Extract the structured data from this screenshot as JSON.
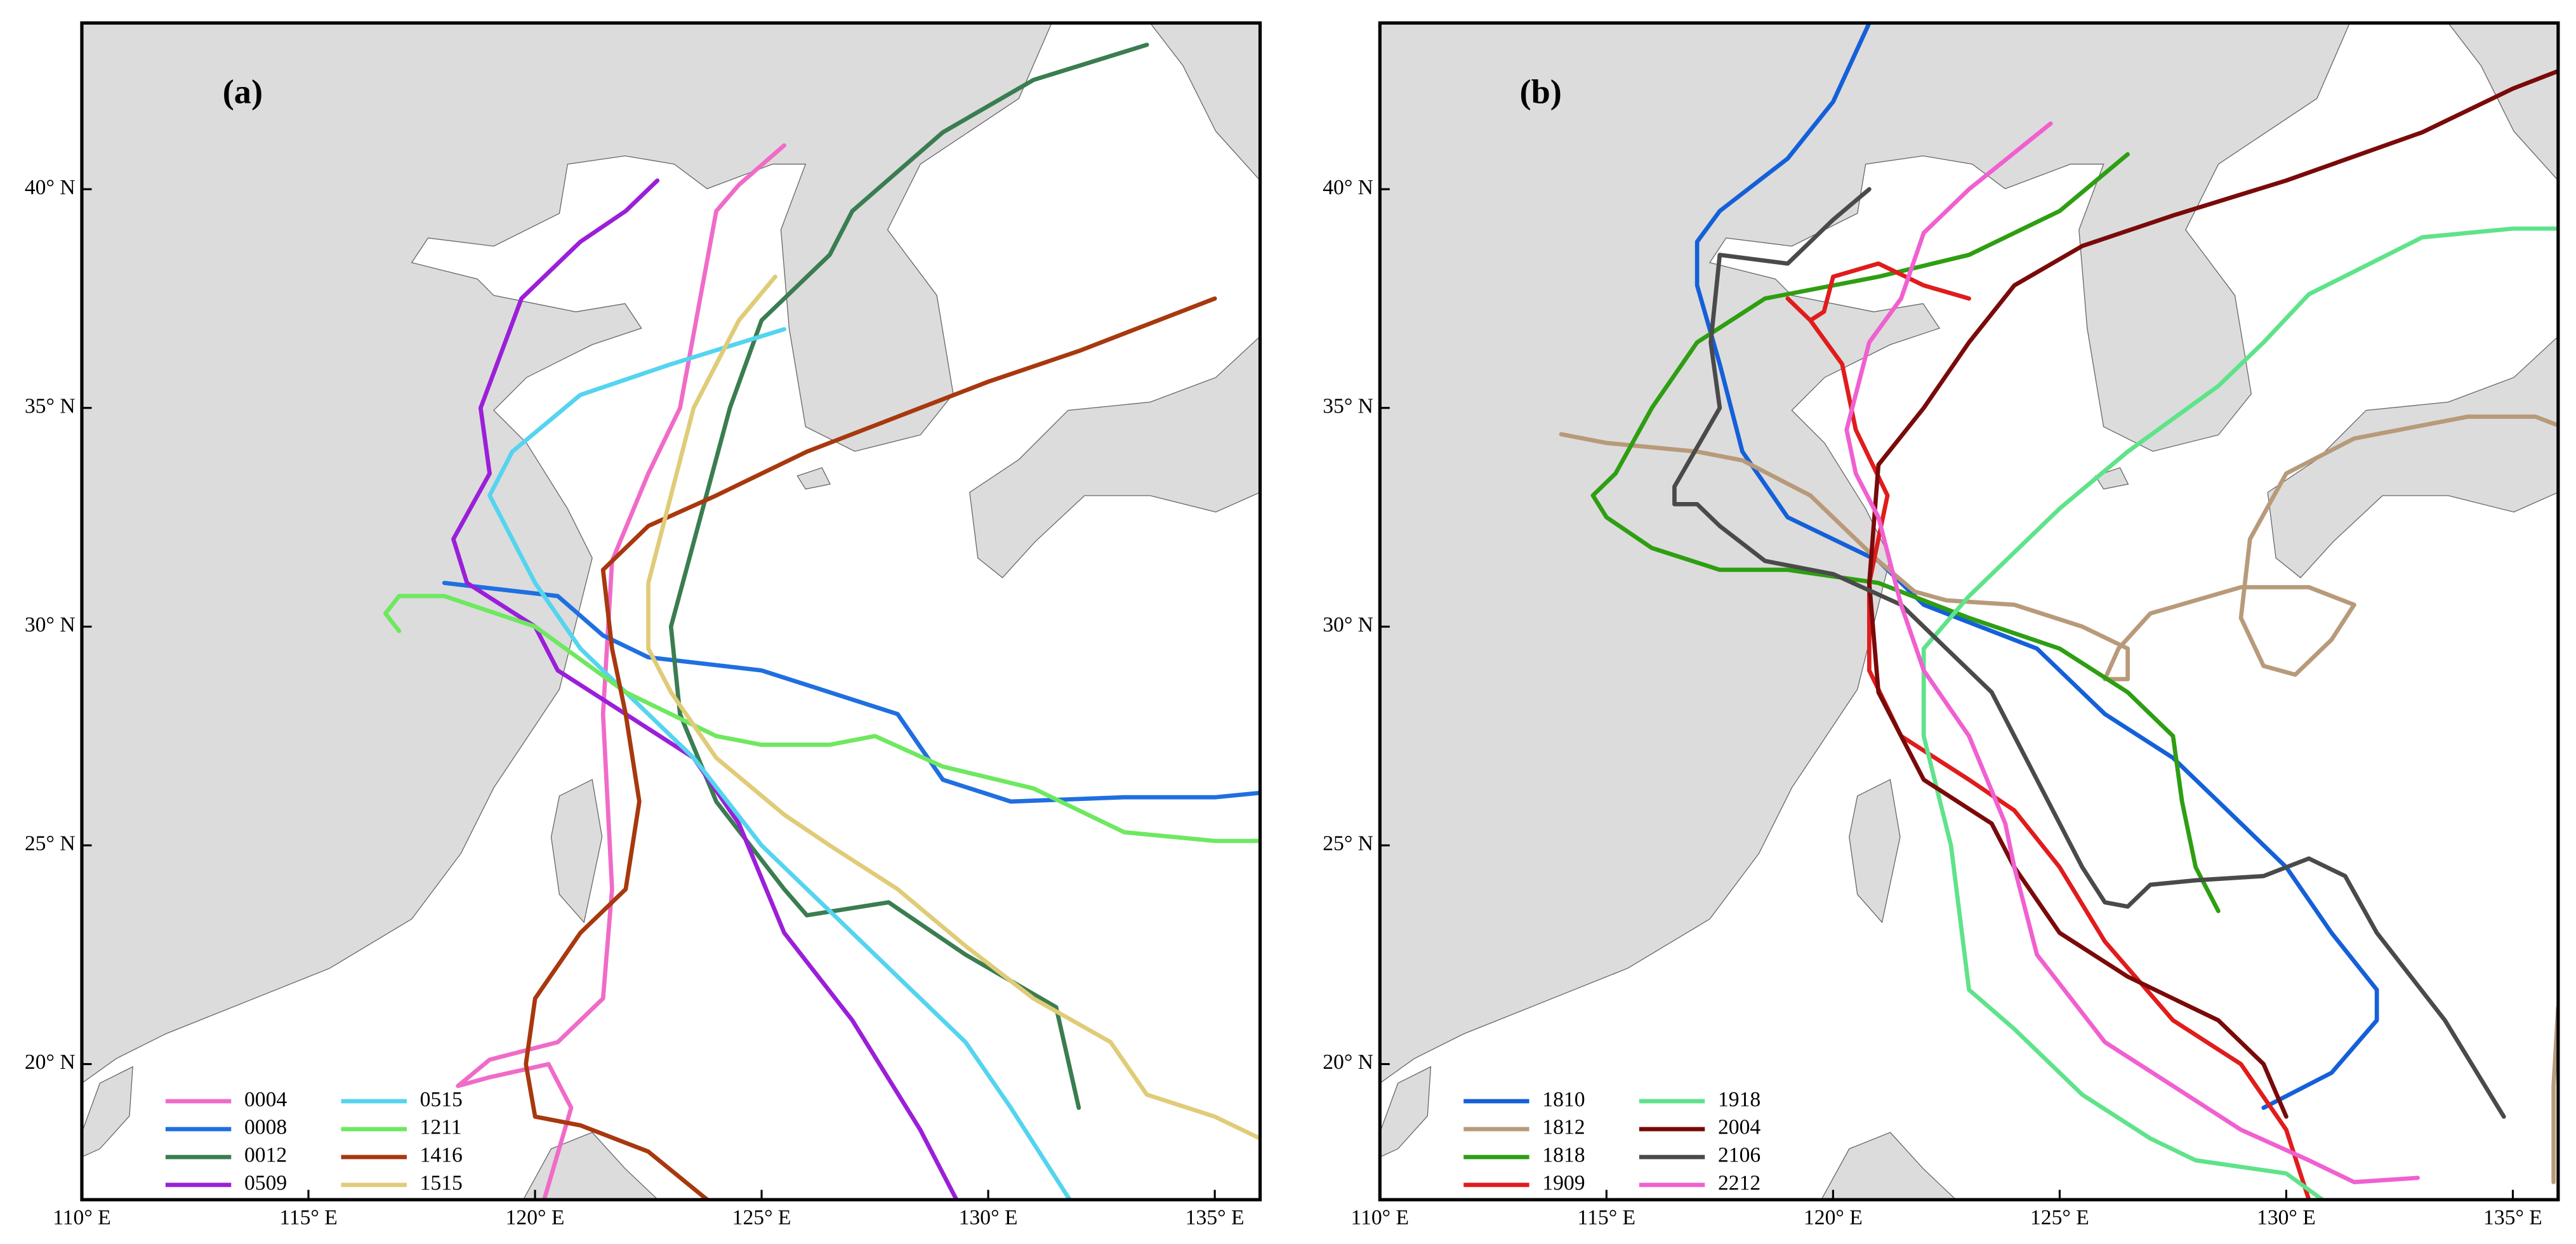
{
  "chart_data": [
    {
      "type": "map",
      "title": "(a)",
      "xlim": [
        110,
        136
      ],
      "ylim": [
        16.9,
        43.8
      ],
      "xticks": [
        {
          "value": 110,
          "label": "110° E"
        },
        {
          "value": 115,
          "label": "115° E"
        },
        {
          "value": 120,
          "label": "120° E"
        },
        {
          "value": 125,
          "label": "125° E"
        },
        {
          "value": 130,
          "label": "130° E"
        },
        {
          "value": 135,
          "label": "135° E"
        }
      ],
      "yticks": [
        {
          "value": 20,
          "label": "20° N"
        },
        {
          "value": 25,
          "label": "25° N"
        },
        {
          "value": 30,
          "label": "30° N"
        },
        {
          "value": 35,
          "label": "35° N"
        },
        {
          "value": 40,
          "label": "40° N"
        }
      ],
      "series": [
        {
          "name": "0004",
          "color": "#f06bc8",
          "x": [
            120.2,
            120.8,
            120.3,
            119.0,
            118.3,
            119.0,
            120.5,
            121.5,
            121.7,
            121.5,
            121.7,
            122.5,
            123.2,
            124.0,
            124.5,
            125.5
          ],
          "values": [
            16.9,
            19.0,
            20.0,
            19.7,
            19.5,
            20.1,
            20.5,
            21.5,
            24.0,
            28.0,
            31.5,
            33.5,
            35.0,
            39.5,
            40.1,
            41.0
          ]
        },
        {
          "name": "0008",
          "color": "#1f6fe0",
          "x": [
            118,
            120.5,
            121.5,
            122.5,
            125,
            126.5,
            128,
            129,
            130.5,
            133,
            135,
            136
          ],
          "values": [
            31,
            30.7,
            29.8,
            29.3,
            29,
            28.5,
            28,
            26.5,
            26,
            26.1,
            26.1,
            26.2
          ]
        },
        {
          "name": "0012",
          "color": "#3a7d50",
          "x": [
            132,
            131.5,
            129.5,
            127.8,
            126,
            125.5,
            124,
            123.2,
            123,
            124.3,
            125,
            126.5,
            127,
            129,
            131,
            133.5
          ],
          "values": [
            19,
            21.3,
            22.5,
            23.7,
            23.4,
            24,
            26,
            28,
            30,
            35,
            37,
            38.5,
            39.5,
            41.3,
            42.5,
            43.3
          ]
        },
        {
          "name": "0509",
          "color": "#9b1fd8",
          "x": [
            129.3,
            128.5,
            127,
            125.5,
            124.5,
            123.5,
            122,
            120.5,
            120,
            118.5,
            118.2,
            119,
            118.8,
            119.7,
            121,
            122,
            122.7
          ],
          "values": [
            16.9,
            18.5,
            21,
            23,
            25.5,
            27,
            28,
            29,
            30,
            31,
            32,
            33.5,
            35,
            37.5,
            38.8,
            39.5,
            40.2
          ]
        },
        {
          "name": "0515",
          "color": "#55d4ef",
          "x": [
            131.8,
            130.5,
            129.5,
            126.5,
            125,
            123.5,
            122,
            121,
            120,
            119,
            119.5,
            121,
            123,
            125.5
          ],
          "values": [
            16.9,
            19,
            20.5,
            23.5,
            25,
            27,
            28.5,
            29.5,
            31,
            33,
            34,
            35.3,
            36,
            36.8
          ]
        },
        {
          "name": "1211",
          "color": "#6ee860",
          "x": [
            117,
            116.7,
            117,
            118,
            120,
            122,
            124,
            125,
            126.5,
            127.5,
            129,
            131,
            133,
            135,
            136
          ],
          "values": [
            29.9,
            30.3,
            30.7,
            30.7,
            30,
            28.5,
            27.5,
            27.3,
            27.3,
            27.5,
            26.8,
            26.3,
            25.3,
            25.1,
            25.1
          ]
        },
        {
          "name": "1416",
          "color": "#a8380e",
          "x": [
            123.8,
            122.5,
            121,
            120,
            119.8,
            120,
            121,
            122,
            122.3,
            122,
            121.7,
            121.5,
            122.5,
            124,
            126,
            128,
            130,
            132,
            135
          ],
          "values": [
            16.9,
            18,
            18.6,
            18.8,
            20,
            21.5,
            23,
            24,
            26,
            28,
            29.5,
            31.3,
            32.3,
            33,
            34,
            34.8,
            35.6,
            36.3,
            37.5
          ]
        },
        {
          "name": "1515",
          "color": "#e0cc78",
          "x": [
            136,
            135,
            133.5,
            132.7,
            131,
            129.5,
            128,
            126.5,
            125.5,
            124,
            123,
            122.5,
            122.5,
            123,
            123.5,
            124.5,
            125.3
          ],
          "values": [
            18.3,
            18.8,
            19.3,
            20.5,
            21.5,
            22.7,
            24,
            25,
            25.7,
            27,
            28.5,
            29.5,
            31,
            33,
            35,
            37,
            38
          ]
        }
      ]
    },
    {
      "type": "map",
      "title": "(b)",
      "xlim": [
        110,
        136
      ],
      "ylim": [
        16.9,
        43.8
      ],
      "xticks": [
        {
          "value": 110,
          "label": "110° E"
        },
        {
          "value": 115,
          "label": "115° E"
        },
        {
          "value": 120,
          "label": "120° E"
        },
        {
          "value": 125,
          "label": "125° E"
        },
        {
          "value": 130,
          "label": "130° E"
        },
        {
          "value": 135,
          "label": "135° E"
        }
      ],
      "yticks": [
        {
          "value": 20,
          "label": "20° N"
        },
        {
          "value": 25,
          "label": "25° N"
        },
        {
          "value": 30,
          "label": "30° N"
        },
        {
          "value": 35,
          "label": "35° N"
        },
        {
          "value": 40,
          "label": "40° N"
        }
      ],
      "series": [
        {
          "name": "1810",
          "color": "#1560d8",
          "x": [
            129.5,
            131,
            132,
            132,
            131,
            130,
            128.5,
            127.5,
            126,
            124.5,
            122,
            121,
            119,
            118,
            117.5,
            117,
            117,
            117.5,
            119,
            120,
            120.8
          ],
          "values": [
            19,
            19.8,
            21,
            21.7,
            23,
            24.5,
            26,
            27,
            28,
            29.5,
            30.5,
            31.5,
            32.5,
            34,
            36,
            37.8,
            38.8,
            39.5,
            40.7,
            42,
            43.8
          ]
        },
        {
          "name": "1812",
          "color": "#b89a7a",
          "x": [
            114,
            115,
            117,
            118,
            119.5,
            121,
            121.8,
            122.5,
            124,
            125.5,
            126.5,
            126.5,
            126,
            126.3,
            127,
            129,
            130.5,
            131.5,
            131,
            130.2,
            129.5,
            129,
            129.2,
            130,
            131.5,
            134,
            135.5,
            136,
            null,
            135.9,
            135.9,
            136
          ],
          "values": [
            34.4,
            34.2,
            34,
            33.8,
            33,
            31.5,
            30.8,
            30.6,
            30.5,
            30,
            29.5,
            28.8,
            28.8,
            29.5,
            30.3,
            30.9,
            30.9,
            30.5,
            29.7,
            28.9,
            29.1,
            30.2,
            32,
            33.5,
            34.3,
            34.8,
            34.8,
            34.6,
            null,
            17.3,
            19.5,
            21.3
          ]
        },
        {
          "name": "1818",
          "color": "#2e9e12",
          "x": [
            128.5,
            128,
            127.7,
            127.5,
            126.5,
            125,
            123,
            121,
            119,
            117.5,
            116,
            115,
            114.7,
            115.2,
            116,
            117,
            118.5,
            121,
            123,
            125,
            126.5
          ],
          "values": [
            23.5,
            24.5,
            26,
            27.5,
            28.5,
            29.5,
            30.2,
            31,
            31.3,
            31.3,
            31.8,
            32.5,
            33,
            33.5,
            35,
            36.5,
            37.5,
            38,
            38.5,
            39.5,
            40.8
          ]
        },
        {
          "name": "1909",
          "color": "#e01c1c",
          "x": [
            130.5,
            130,
            129,
            127.5,
            126,
            125,
            124,
            123,
            121.5,
            120.8,
            120.8,
            121.2,
            120.5,
            120.2,
            119.5,
            119,
            119.5,
            119.8,
            120,
            121,
            122,
            123
          ],
          "values": [
            16.9,
            18.5,
            20,
            21,
            22.8,
            24.5,
            25.8,
            26.5,
            27.5,
            29,
            31,
            33,
            34.5,
            36,
            37,
            37.5,
            37,
            37.2,
            38,
            38.3,
            37.8,
            37.5
          ]
        },
        {
          "name": "1918",
          "color": "#5fe38a",
          "x": [
            130.8,
            130,
            128,
            127,
            125.5,
            124,
            123,
            122.6,
            122,
            122,
            123,
            125,
            126.5,
            128.5,
            129.5,
            130.5,
            133,
            135,
            136
          ],
          "values": [
            16.9,
            17.5,
            17.8,
            18.3,
            19.3,
            20.8,
            21.7,
            25,
            27.5,
            29.5,
            30.7,
            32.7,
            34,
            35.5,
            36.5,
            37.6,
            38.9,
            39.1,
            39.1
          ]
        },
        {
          "name": "2004",
          "color": "#7a0a0a",
          "x": [
            130,
            129.5,
            128.5,
            126.5,
            125,
            124,
            123.5,
            122,
            121,
            120.8,
            121,
            122,
            123,
            124,
            125.5,
            127.5,
            130,
            133,
            135,
            136
          ],
          "values": [
            18.8,
            20,
            21,
            22,
            23,
            24.5,
            25.5,
            26.5,
            28.5,
            31,
            33.7,
            35,
            36.5,
            37.8,
            38.7,
            39.4,
            40.2,
            41.3,
            42.3,
            42.7
          ]
        },
        {
          "name": "2106",
          "color": "#4a4a4a",
          "x": [
            134.8,
            133.5,
            132,
            131.3,
            130.5,
            129.5,
            128,
            127,
            126.5,
            126,
            125.5,
            124.5,
            123.5,
            122.5,
            121.5,
            120,
            118.5,
            117.5,
            117,
            116.5,
            116.5,
            117.5,
            117.3,
            117.5,
            119,
            120,
            120.8
          ],
          "values": [
            18.8,
            21,
            23,
            24.3,
            24.7,
            24.3,
            24.2,
            24.1,
            23.6,
            23.7,
            24.5,
            26.5,
            28.5,
            29.5,
            30.5,
            31.2,
            31.5,
            32.3,
            32.8,
            32.8,
            33.2,
            35,
            36.5,
            38.5,
            38.3,
            39.3,
            40
          ]
        },
        {
          "name": "2212",
          "color": "#f060d0",
          "x": [
            132.9,
            131.5,
            130.5,
            129,
            127.5,
            126,
            124.5,
            124,
            123.8,
            123,
            122,
            121.5,
            121,
            120.5,
            120.3,
            120.8,
            121.5,
            122,
            123,
            124.8
          ],
          "values": [
            17.4,
            17.3,
            17.8,
            18.5,
            19.5,
            20.5,
            22.5,
            24.5,
            25.5,
            27.5,
            29,
            30.5,
            32.5,
            33.5,
            34.5,
            36.5,
            37.5,
            39,
            40,
            41.5
          ]
        }
      ]
    }
  ]
}
